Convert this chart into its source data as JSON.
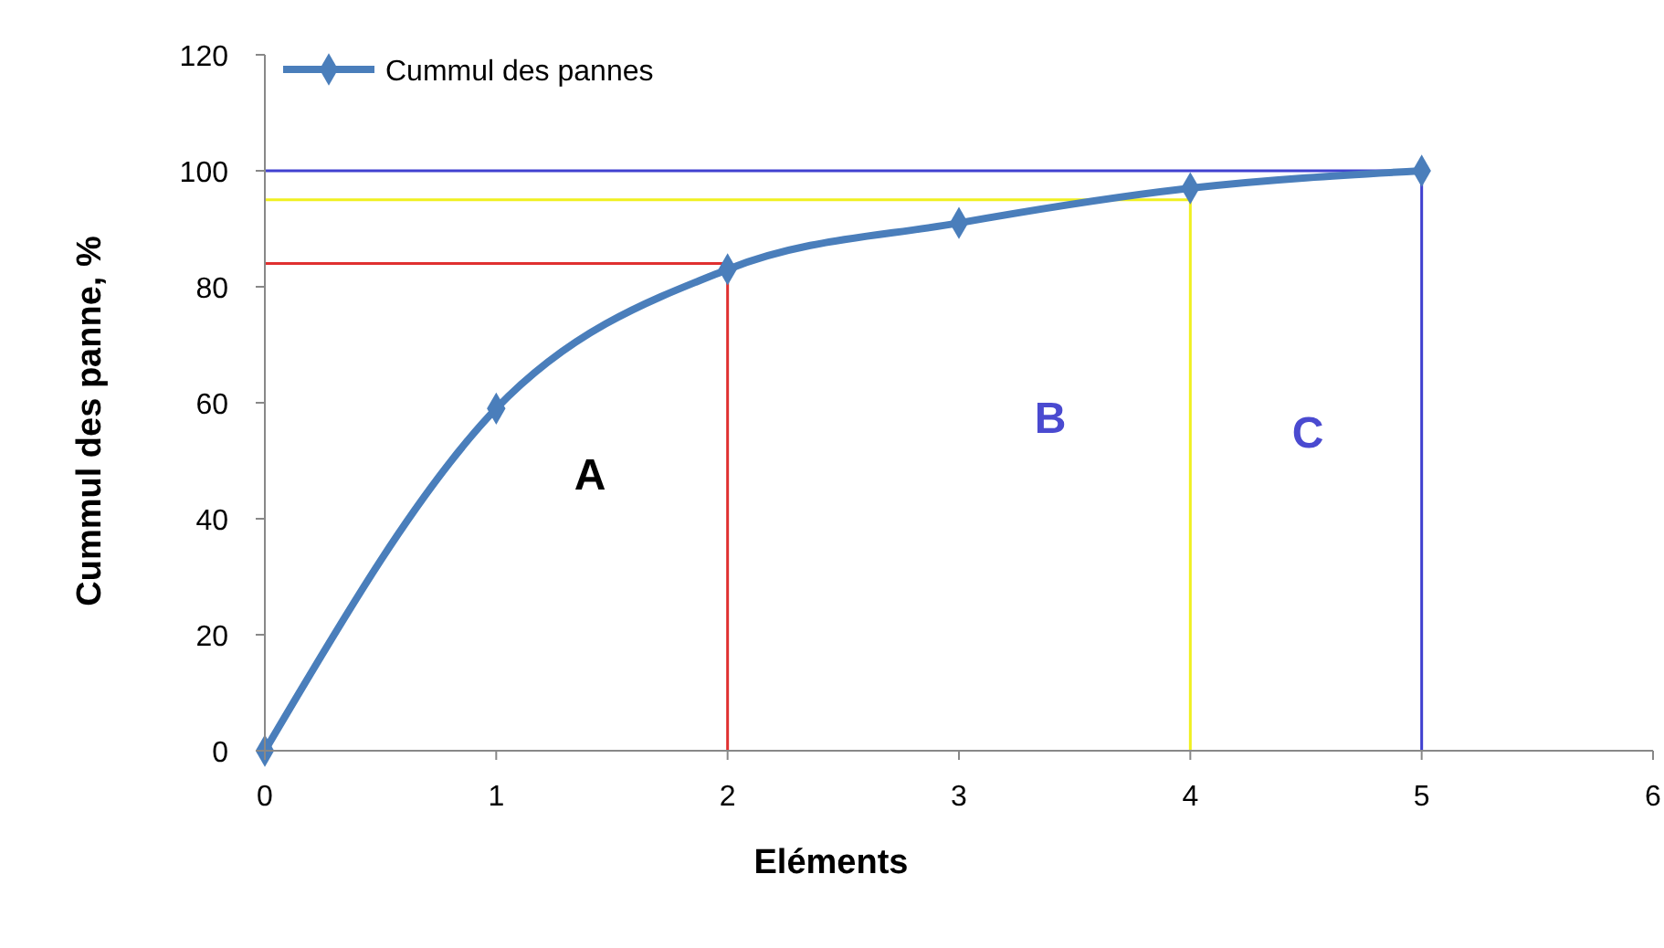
{
  "chart_data": {
    "type": "line",
    "xlabel": "Eléments",
    "ylabel": "Cummul des panne, %",
    "x": [
      0,
      1,
      2,
      3,
      4,
      5
    ],
    "series": [
      {
        "name": "Cummul des pannes",
        "color": "#4a7ebb",
        "values": [
          0,
          59,
          83,
          91,
          97,
          100
        ],
        "marker": "diamond"
      },
      {
        "color": "#e03030",
        "x": [
          0,
          2,
          2
        ],
        "values": [
          84,
          84,
          0
        ],
        "marker": "none"
      },
      {
        "color": "#f0f020",
        "x": [
          0,
          4,
          4
        ],
        "values": [
          95,
          95,
          0
        ],
        "marker": "none"
      },
      {
        "color": "#4040d0",
        "x": [
          0,
          5,
          5
        ],
        "values": [
          100,
          100,
          0
        ],
        "marker": "none"
      }
    ],
    "annotations": [
      "A",
      "B",
      "C"
    ],
    "xlim": [
      0,
      6
    ],
    "xticks": [
      0,
      1,
      2,
      3,
      4,
      5,
      6
    ],
    "ylim": [
      0,
      120
    ],
    "yticks": [
      0,
      20,
      40,
      60,
      80,
      100,
      120
    ],
    "legend": "top left",
    "grid": false
  }
}
